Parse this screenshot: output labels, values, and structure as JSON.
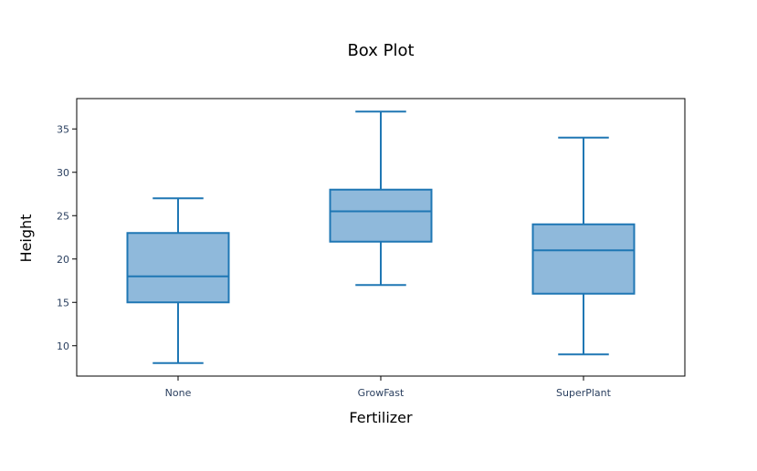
{
  "chart_data": {
    "type": "box",
    "title": "Box Plot",
    "xlabel": "Fertilizer",
    "ylabel": "Height",
    "categories": [
      "None",
      "GrowFast",
      "SuperPlant"
    ],
    "boxes": [
      {
        "category": "None",
        "min": 8,
        "q1": 15,
        "median": 18,
        "q3": 23,
        "max": 27
      },
      {
        "category": "GrowFast",
        "min": 17,
        "q1": 22,
        "median": 25.5,
        "q3": 28,
        "max": 37
      },
      {
        "category": "SuperPlant",
        "min": 9,
        "q1": 16,
        "median": 21,
        "q3": 24,
        "max": 34
      }
    ],
    "ylim": [
      6.5,
      38.5
    ],
    "yticks": [
      10,
      15,
      20,
      25,
      30,
      35
    ],
    "grid": false,
    "colors": {
      "line": "#1f77b4",
      "fill": "#8fb9db",
      "text": "#2a3f5f",
      "axis": "#000000"
    }
  }
}
